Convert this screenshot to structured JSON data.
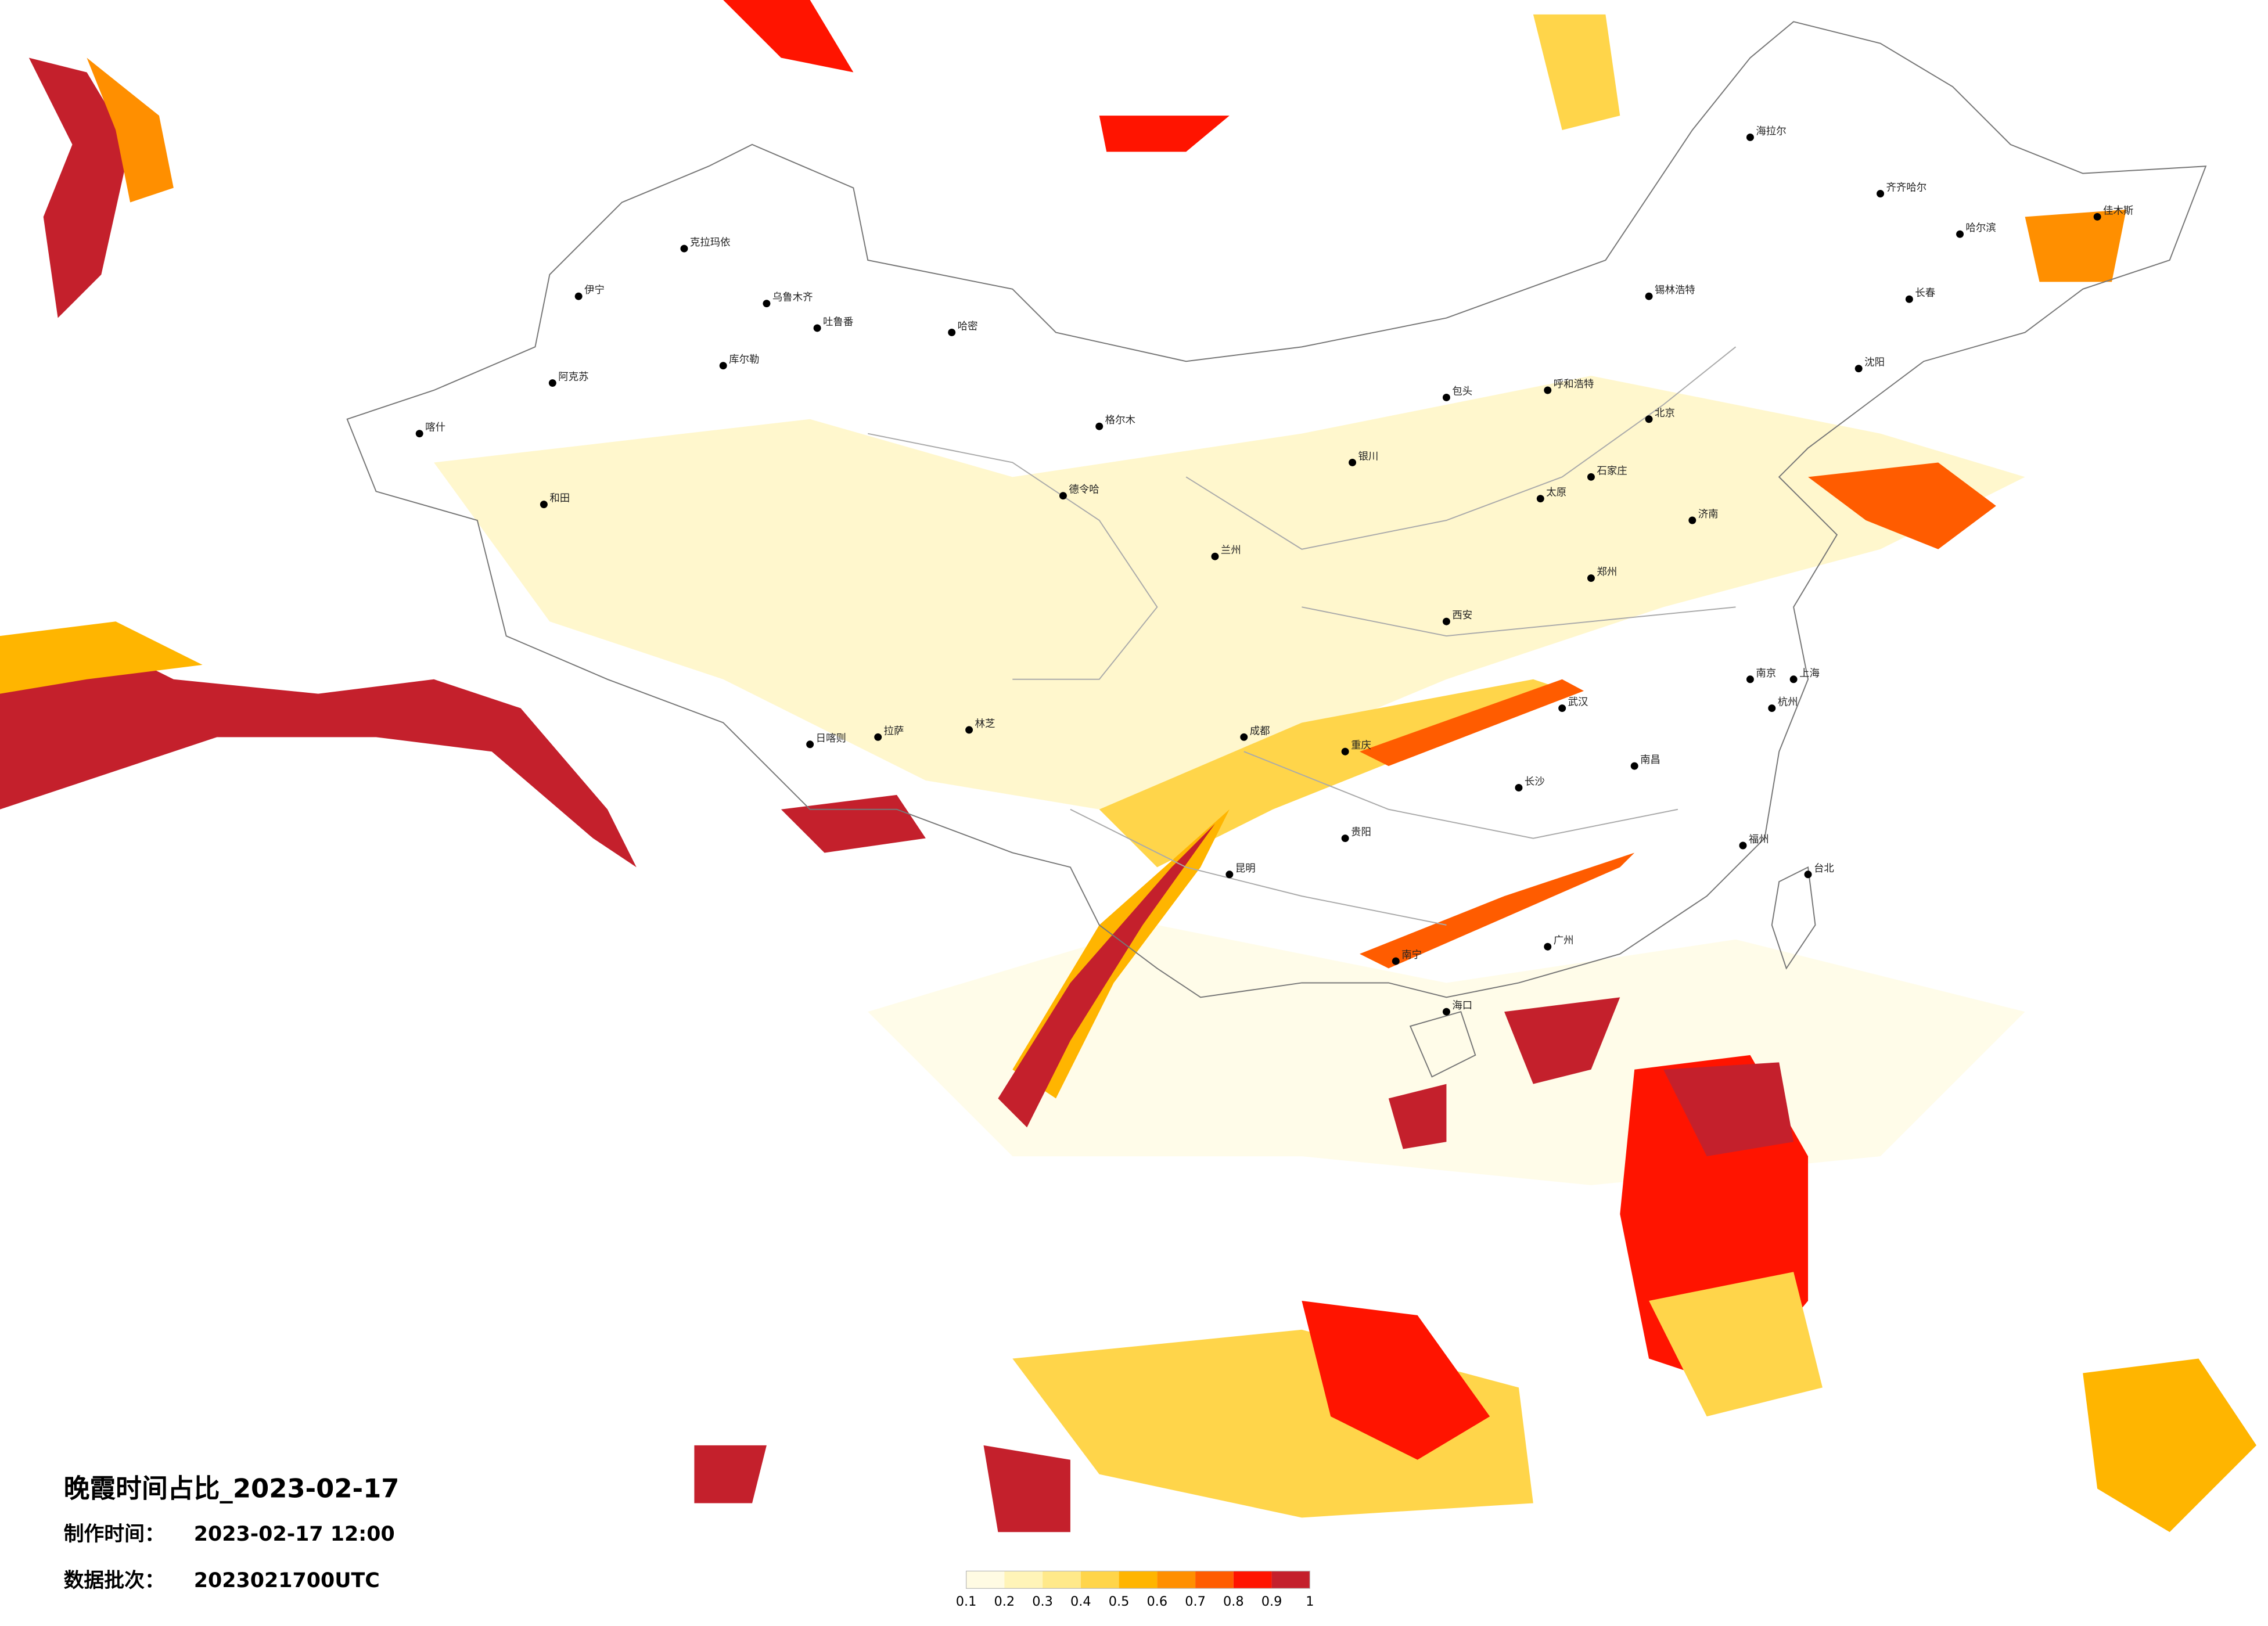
{
  "header": {
    "title": "晚霞时间占比_2023-02-17",
    "made_label": "制作时间：",
    "made_time": "2023-02-17 12:00",
    "batch_label": "数据批次：",
    "batch": "2023021700UTC"
  },
  "legend": {
    "ticks": [
      0.1,
      0.2,
      0.3,
      0.4,
      0.5,
      0.6,
      0.7,
      0.8,
      0.9,
      1
    ],
    "colors": [
      "#fffbe3",
      "#fff4b8",
      "#ffe98a",
      "#ffd54a",
      "#ffb500",
      "#ff8f00",
      "#ff5c00",
      "#ff1400",
      "#c4202c"
    ]
  },
  "map": {
    "cities": [
      {
        "name": "克拉玛依"
      },
      {
        "name": "乌鲁木齐"
      },
      {
        "name": "吐鲁番"
      },
      {
        "name": "哈密"
      },
      {
        "name": "库尔勒"
      },
      {
        "name": "阿克苏"
      },
      {
        "name": "和田"
      },
      {
        "name": "喀什"
      },
      {
        "name": "伊宁"
      },
      {
        "name": "德令哈"
      },
      {
        "name": "日喀则"
      },
      {
        "name": "拉萨"
      },
      {
        "name": "林芝"
      },
      {
        "name": "海拉尔"
      },
      {
        "name": "齐齐哈尔"
      },
      {
        "name": "哈尔滨"
      },
      {
        "name": "长春"
      },
      {
        "name": "沈阳"
      },
      {
        "name": "北京"
      },
      {
        "name": "石家庄"
      },
      {
        "name": "太原"
      },
      {
        "name": "呼和浩特"
      },
      {
        "name": "包头"
      },
      {
        "name": "银川"
      },
      {
        "name": "兰州"
      },
      {
        "name": "西安"
      },
      {
        "name": "郑州"
      },
      {
        "name": "济南"
      },
      {
        "name": "南京"
      },
      {
        "name": "上海"
      },
      {
        "name": "武汉"
      },
      {
        "name": "长沙"
      },
      {
        "name": "重庆"
      },
      {
        "name": "成都"
      },
      {
        "name": "贵阳"
      },
      {
        "name": "昆明"
      },
      {
        "name": "南宁"
      },
      {
        "name": "广州"
      },
      {
        "name": "福州"
      },
      {
        "name": "杭州"
      },
      {
        "name": "南昌"
      },
      {
        "name": "海口"
      },
      {
        "name": "台北"
      },
      {
        "name": "锡林浩特"
      },
      {
        "name": "佳木斯"
      },
      {
        "name": "格尔木"
      }
    ]
  }
}
